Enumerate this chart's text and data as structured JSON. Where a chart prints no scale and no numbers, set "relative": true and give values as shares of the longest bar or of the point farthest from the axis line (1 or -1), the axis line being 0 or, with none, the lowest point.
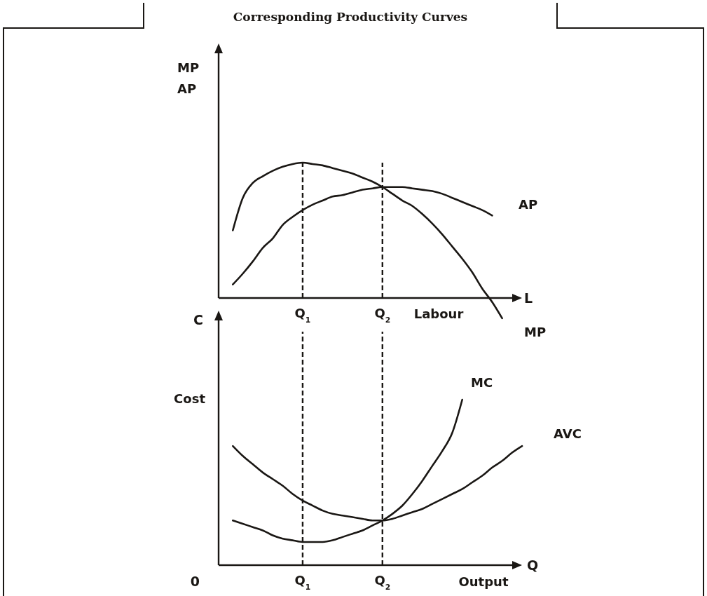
{
  "chart_data": [
    {
      "type": "line",
      "title": "Corresponding Productivity Curves",
      "relative": true,
      "xlabel": "Labour",
      "ylabel": "MP AP",
      "annotations": [
        "L"
      ],
      "line_style": "solid",
      "categories": [
        null,
        null,
        null,
        null,
        null,
        null,
        null,
        null,
        "Q$_{1}$",
        null,
        null,
        null,
        null,
        null,
        null,
        null,
        "Q$_{2}$",
        null,
        null,
        null,
        null,
        null,
        null,
        null,
        null,
        null,
        null,
        null,
        null,
        null,
        null
      ],
      "ref_lines": [
        {
          "axis": "x",
          "value": "Q$_{1}$",
          "line_style": "dashed"
        },
        {
          "axis": "x",
          "value": "Q$_{2}$",
          "line_style": "dashed"
        }
      ],
      "series": [
        {
          "name": "MP",
          "color": "#1a1714",
          "values": [
            null,
            0.5,
            0.74,
            0.85,
            0.9,
            0.94,
            0.97,
            0.99,
            1,
            0.99,
            0.98,
            0.96,
            0.94,
            0.92,
            0.89,
            0.86,
            0.82,
            0.77,
            0.72,
            0.68,
            0.62,
            0.55,
            0.47,
            0.38,
            0.29,
            0.19,
            0.07,
            -0.03,
            -0.15,
            null,
            null
          ]
        },
        {
          "name": "AP",
          "color": "#1a1714",
          "values": [
            null,
            0.1,
            0.18,
            0.27,
            0.37,
            0.44,
            0.54,
            0.6,
            0.65,
            0.69,
            0.72,
            0.75,
            0.76,
            0.78,
            0.8,
            0.81,
            0.82,
            0.82,
            0.82,
            0.81,
            0.8,
            0.79,
            0.77,
            0.74,
            0.71,
            0.68,
            0.65,
            0.61,
            null,
            null,
            null
          ]
        }
      ]
    },
    {
      "type": "line",
      "relative": true,
      "xlabel": "Output",
      "ylabel": "Cost",
      "annotations": [
        "C",
        "Q",
        "0"
      ],
      "line_style": "solid",
      "categories": [
        null,
        null,
        null,
        null,
        null,
        null,
        null,
        null,
        "Q$_{1}$",
        null,
        null,
        null,
        null,
        null,
        null,
        null,
        "Q$_{2}$",
        null,
        null,
        null,
        null,
        null,
        null,
        null,
        null,
        null,
        null,
        null,
        null,
        null,
        null
      ],
      "ref_lines": [
        {
          "axis": "x",
          "value": "Q$_{1}$",
          "line_style": "dashed"
        },
        {
          "axis": "x",
          "value": "Q$_{2}$",
          "line_style": "dashed"
        }
      ],
      "series": [
        {
          "name": "MC",
          "color": "#1a1714",
          "values": [
            null,
            0.27,
            0.25,
            0.23,
            0.21,
            0.18,
            0.16,
            0.15,
            0.14,
            0.14,
            0.14,
            0.15,
            0.17,
            0.19,
            0.21,
            0.24,
            0.27,
            0.31,
            0.36,
            0.43,
            0.51,
            0.6,
            0.69,
            0.8,
            1,
            null,
            null,
            null,
            null,
            null,
            null
          ]
        },
        {
          "name": "AVC",
          "color": "#1a1714",
          "values": [
            null,
            0.72,
            0.66,
            0.61,
            0.56,
            0.52,
            0.48,
            0.43,
            0.39,
            0.36,
            0.33,
            0.31,
            0.3,
            0.29,
            0.28,
            0.27,
            0.27,
            0.28,
            0.3,
            0.32,
            0.34,
            0.37,
            0.4,
            0.43,
            0.46,
            0.5,
            0.54,
            0.59,
            0.63,
            0.68,
            0.72
          ]
        }
      ]
    }
  ]
}
